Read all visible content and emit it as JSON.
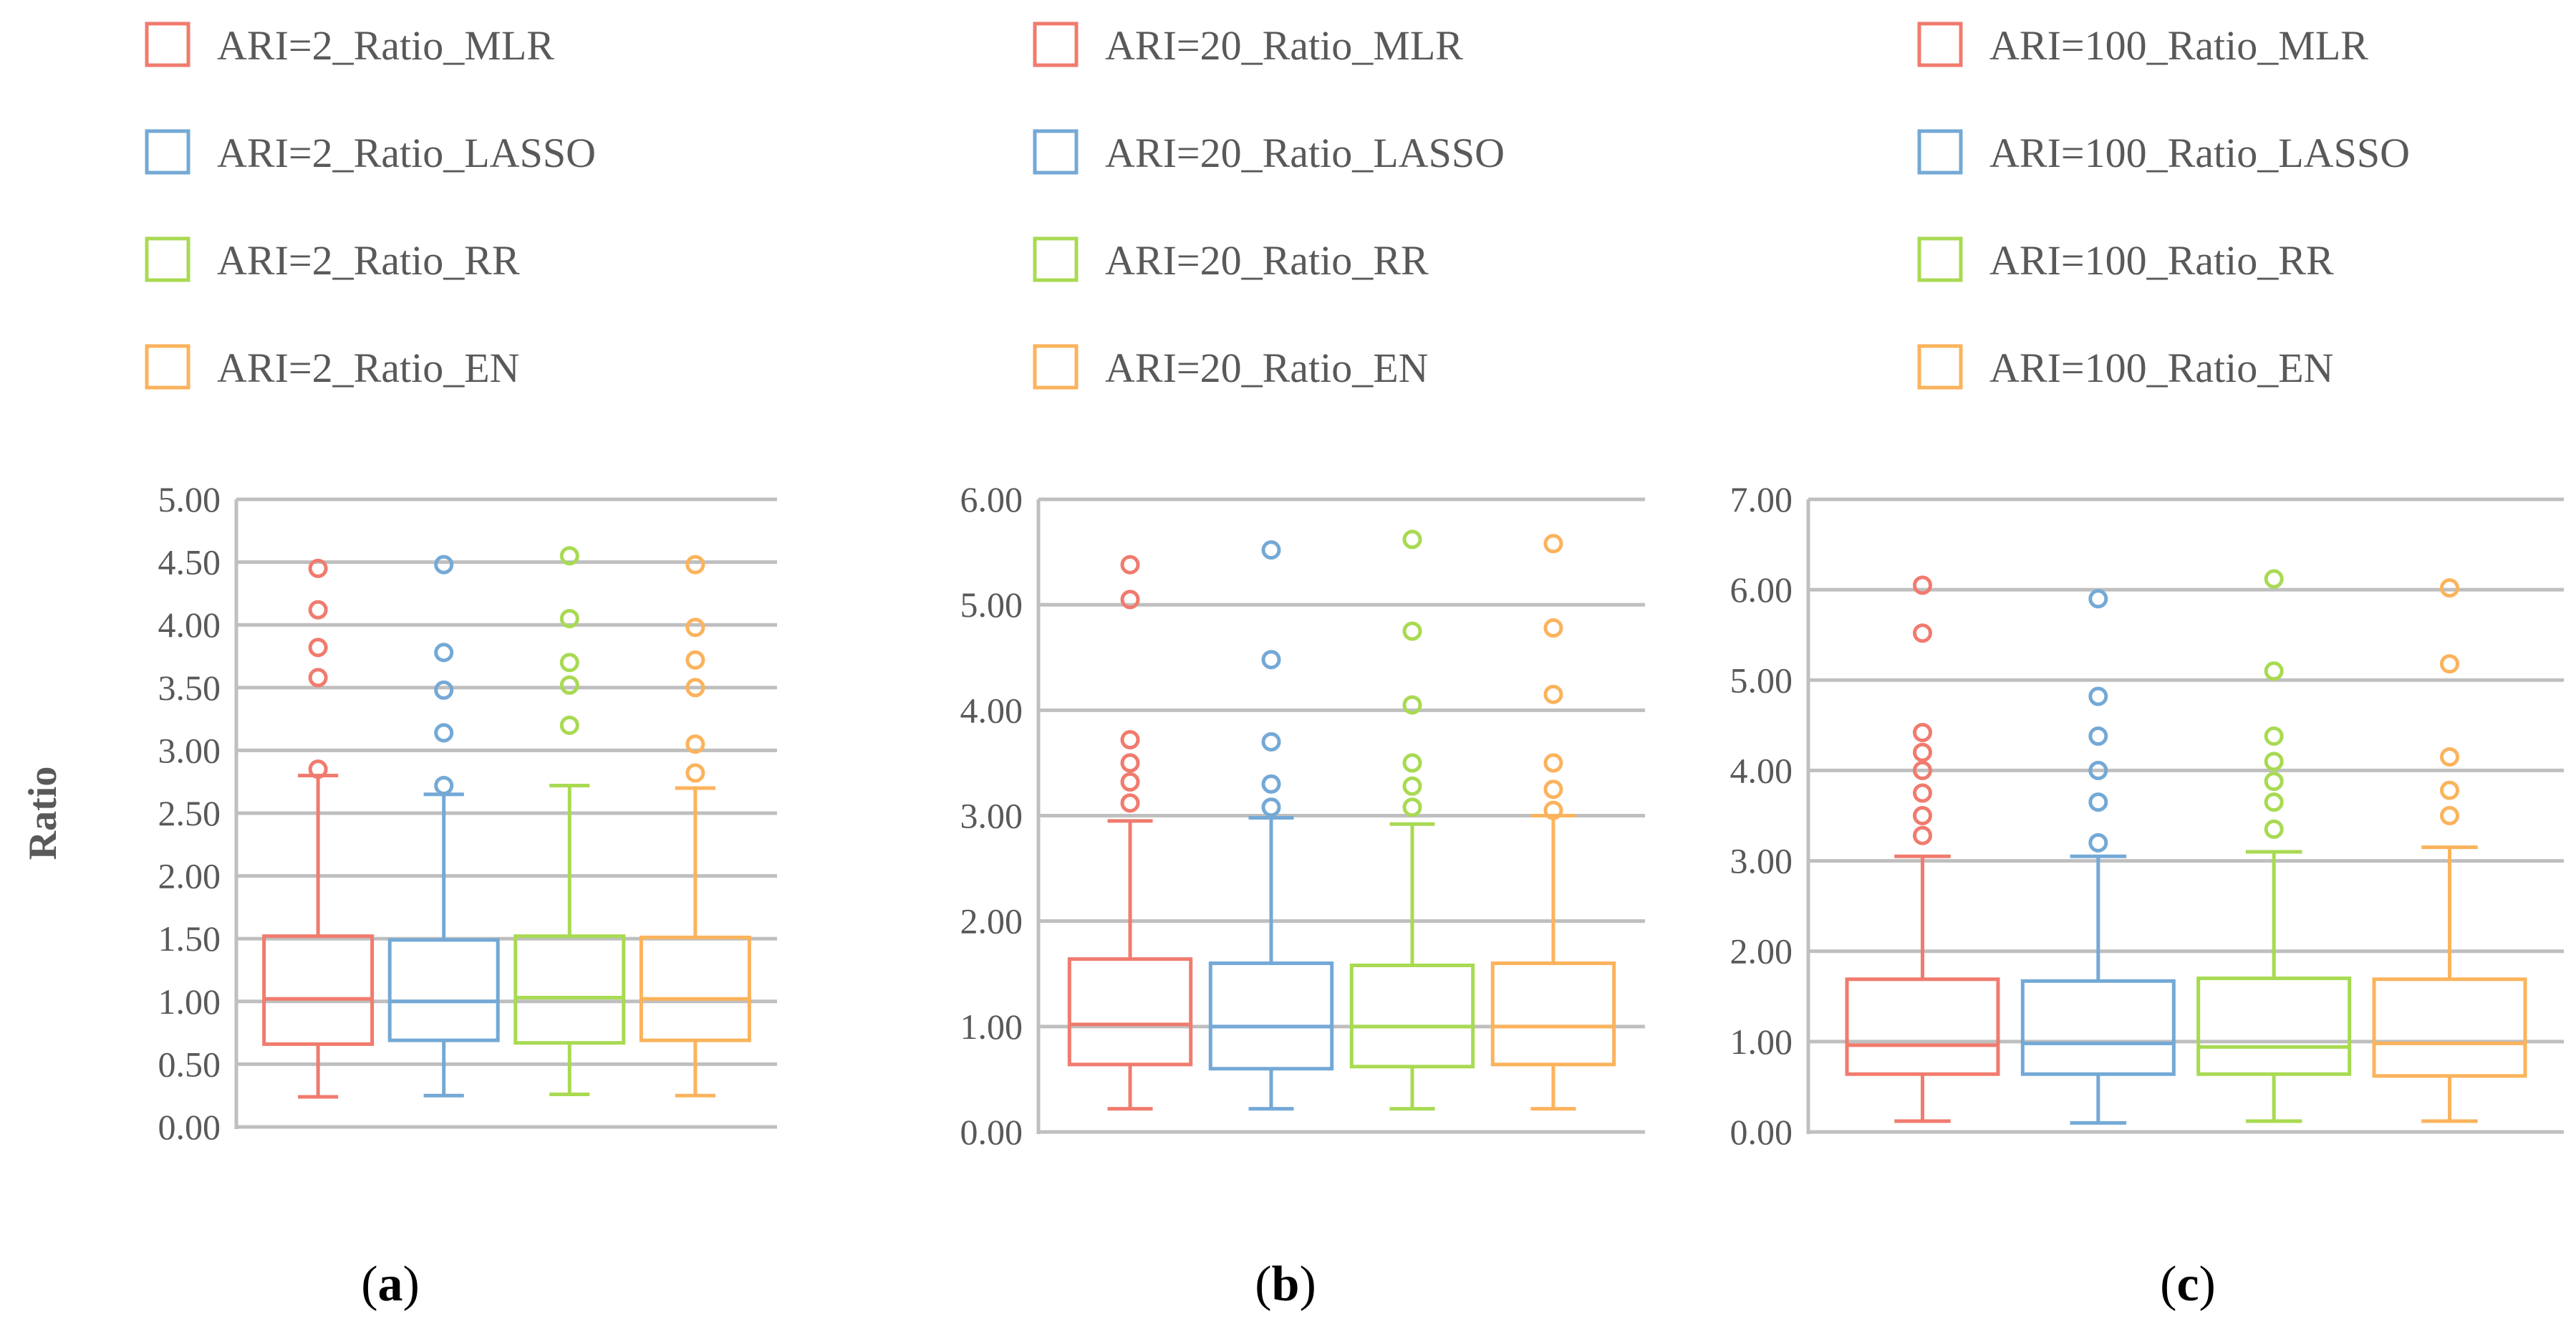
{
  "series_colors": {
    "MLR": "#F07B6E",
    "LASSO": "#74A9D6",
    "RR": "#A8DA52",
    "EN": "#FBB35C"
  },
  "chart_data": [
    {
      "type": "boxplot",
      "panel_label": "a",
      "ylabel": "Ratio",
      "ylim": [
        0,
        5
      ],
      "ytick_step": 0.5,
      "yticks": [
        "0.00",
        "0.50",
        "1.00",
        "1.50",
        "2.00",
        "2.50",
        "3.00",
        "3.50",
        "4.00",
        "4.50",
        "5.00"
      ],
      "legend": [
        "ARI=2_Ratio_MLR",
        "ARI=2_Ratio_LASSO",
        "ARI=2_Ratio_RR",
        "ARI=2_Ratio_EN"
      ],
      "series": [
        {
          "name": "ARI=2_Ratio_MLR",
          "key": "MLR",
          "min": 0.24,
          "q1": 0.66,
          "median": 1.02,
          "q3": 1.52,
          "max": 2.8,
          "outliers": [
            2.85,
            3.58,
            3.82,
            4.12,
            4.45
          ]
        },
        {
          "name": "ARI=2_Ratio_LASSO",
          "key": "LASSO",
          "min": 0.25,
          "q1": 0.69,
          "median": 1.0,
          "q3": 1.49,
          "max": 2.65,
          "outliers": [
            2.72,
            3.14,
            3.48,
            3.78,
            4.48
          ]
        },
        {
          "name": "ARI=2_Ratio_RR",
          "key": "RR",
          "min": 0.26,
          "q1": 0.67,
          "median": 1.03,
          "q3": 1.52,
          "max": 2.72,
          "outliers": [
            3.2,
            3.52,
            3.7,
            4.05,
            4.55
          ]
        },
        {
          "name": "ARI=2_Ratio_EN",
          "key": "EN",
          "min": 0.25,
          "q1": 0.69,
          "median": 1.02,
          "q3": 1.51,
          "max": 2.7,
          "outliers": [
            2.82,
            3.05,
            3.5,
            3.72,
            3.98,
            4.48
          ]
        }
      ]
    },
    {
      "type": "boxplot",
      "panel_label": "b",
      "ylabel": "",
      "ylim": [
        0,
        6
      ],
      "ytick_step": 1,
      "yticks": [
        "0.00",
        "1.00",
        "2.00",
        "3.00",
        "4.00",
        "5.00",
        "6.00"
      ],
      "legend": [
        "ARI=20_Ratio_MLR",
        "ARI=20_Ratio_LASSO",
        "ARI=20_Ratio_RR",
        "ARI=20_Ratio_EN"
      ],
      "series": [
        {
          "name": "ARI=20_Ratio_MLR",
          "key": "MLR",
          "min": 0.22,
          "q1": 0.64,
          "median": 1.02,
          "q3": 1.64,
          "max": 2.95,
          "outliers": [
            3.12,
            3.32,
            3.5,
            3.72,
            5.05,
            5.38
          ]
        },
        {
          "name": "ARI=20_Ratio_LASSO",
          "key": "LASSO",
          "min": 0.22,
          "q1": 0.6,
          "median": 1.0,
          "q3": 1.6,
          "max": 2.98,
          "outliers": [
            3.08,
            3.3,
            3.7,
            4.48,
            5.52
          ]
        },
        {
          "name": "ARI=20_Ratio_RR",
          "key": "RR",
          "min": 0.22,
          "q1": 0.62,
          "median": 1.0,
          "q3": 1.58,
          "max": 2.92,
          "outliers": [
            3.08,
            3.28,
            3.5,
            4.05,
            4.75,
            5.62
          ]
        },
        {
          "name": "ARI=20_Ratio_EN",
          "key": "EN",
          "min": 0.22,
          "q1": 0.64,
          "median": 1.0,
          "q3": 1.6,
          "max": 3.0,
          "outliers": [
            3.05,
            3.25,
            3.5,
            4.15,
            4.78,
            5.58
          ]
        }
      ]
    },
    {
      "type": "boxplot",
      "panel_label": "c",
      "ylabel": "",
      "ylim": [
        0,
        7
      ],
      "ytick_step": 1,
      "yticks": [
        "0.00",
        "1.00",
        "2.00",
        "3.00",
        "4.00",
        "5.00",
        "6.00",
        "7.00"
      ],
      "legend": [
        "ARI=100_Ratio_MLR",
        "ARI=100_Ratio_LASSO",
        "ARI=100_Ratio_RR",
        "ARI=100_Ratio_EN"
      ],
      "series": [
        {
          "name": "ARI=100_Ratio_MLR",
          "key": "MLR",
          "min": 0.12,
          "q1": 0.64,
          "median": 0.96,
          "q3": 1.69,
          "max": 3.05,
          "outliers": [
            3.28,
            3.5,
            3.75,
            4.0,
            4.2,
            4.42,
            5.52,
            6.05
          ]
        },
        {
          "name": "ARI=100_Ratio_LASSO",
          "key": "LASSO",
          "min": 0.1,
          "q1": 0.64,
          "median": 0.98,
          "q3": 1.67,
          "max": 3.05,
          "outliers": [
            3.2,
            3.65,
            4.0,
            4.38,
            4.82,
            5.9
          ]
        },
        {
          "name": "ARI=100_Ratio_RR",
          "key": "RR",
          "min": 0.12,
          "q1": 0.64,
          "median": 0.94,
          "q3": 1.7,
          "max": 3.1,
          "outliers": [
            3.35,
            3.65,
            3.88,
            4.1,
            4.38,
            5.1,
            6.12
          ]
        },
        {
          "name": "ARI=100_Ratio_EN",
          "key": "EN",
          "min": 0.12,
          "q1": 0.62,
          "median": 0.98,
          "q3": 1.69,
          "max": 3.15,
          "outliers": [
            3.5,
            3.78,
            4.15,
            5.18,
            6.02
          ]
        }
      ]
    }
  ]
}
